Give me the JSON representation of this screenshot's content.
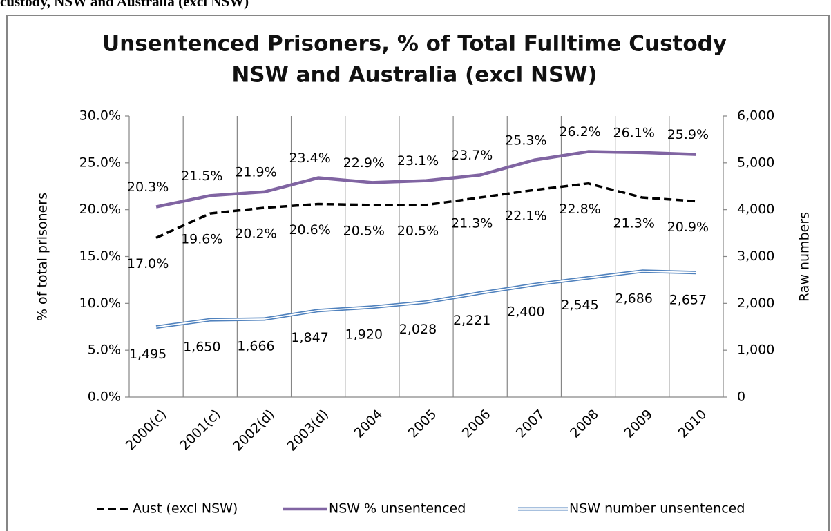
{
  "caption": "custody, NSW and Australia (excl NSW)",
  "chart_data": {
    "type": "line",
    "title": [
      "Unsentenced Prisoners, % of Total Fulltime Custody",
      "NSW and Australia (excl NSW)"
    ],
    "ylabel": "% of total prisoners",
    "y2label": "Raw numbers",
    "categories": [
      "2000(c)",
      "2001(c)",
      "2002(d)",
      "2003(d)",
      "2004",
      "2005",
      "2006",
      "2007",
      "2008",
      "2009",
      "2010"
    ],
    "ylim": [
      0,
      30
    ],
    "yticks": [
      {
        "value": 0,
        "label": "0.0%"
      },
      {
        "value": 5,
        "label": "5.0%"
      },
      {
        "value": 10,
        "label": "10.0%"
      },
      {
        "value": 15,
        "label": "15.0%"
      },
      {
        "value": 20,
        "label": "20.0%"
      },
      {
        "value": 25,
        "label": "25.0%"
      },
      {
        "value": 30,
        "label": "30.0%"
      }
    ],
    "y2lim": [
      0,
      6000
    ],
    "y2ticks": [
      0,
      {
        "value": 1000,
        "label": "1,000"
      },
      {
        "value": 2000,
        "label": "2,000"
      },
      {
        "value": 3000,
        "label": "3,000"
      },
      {
        "value": 4000,
        "label": "4,000"
      },
      {
        "value": 5000,
        "label": "5,000"
      },
      {
        "value": 6000,
        "label": "6,000"
      }
    ],
    "grid": "x",
    "legend": "bottom",
    "series": [
      {
        "name": "Aust (excl NSW)",
        "color": "#000000",
        "line_style": "dashed",
        "values": [
          17.0,
          19.6,
          20.2,
          20.6,
          20.5,
          20.5,
          21.3,
          22.1,
          22.8,
          21.3,
          20.9
        ],
        "value_labels": [
          "17.0%",
          "19.6%",
          "20.2%",
          "20.6%",
          "20.5%",
          "20.5%",
          "21.3%",
          "22.1%",
          "22.8%",
          "21.3%",
          "20.9%"
        ]
      },
      {
        "name": "NSW % unsentenced",
        "color": "#8064a2",
        "line_style": "solid",
        "values": [
          20.3,
          21.5,
          21.9,
          23.4,
          22.9,
          23.1,
          23.7,
          25.3,
          26.2,
          26.1,
          25.9
        ],
        "value_labels": [
          "20.3%",
          "21.5%",
          "21.9%",
          "23.4%",
          "22.9%",
          "23.1%",
          "23.7%",
          "25.3%",
          "26.2%",
          "26.1%",
          "25.9%"
        ]
      },
      {
        "name": "NSW number unsentenced",
        "color": "#4f81bd",
        "line_style": "double",
        "axis": "y2",
        "values": [
          1495,
          1650,
          1666,
          1847,
          1920,
          2028,
          2221,
          2400,
          2545,
          2686,
          2657
        ],
        "value_labels": [
          "1,495",
          "1,650",
          "1,666",
          "1,847",
          "1,920",
          "2,028",
          "2,221",
          "2,400",
          "2,545",
          "2,686",
          "2,657"
        ]
      }
    ]
  }
}
